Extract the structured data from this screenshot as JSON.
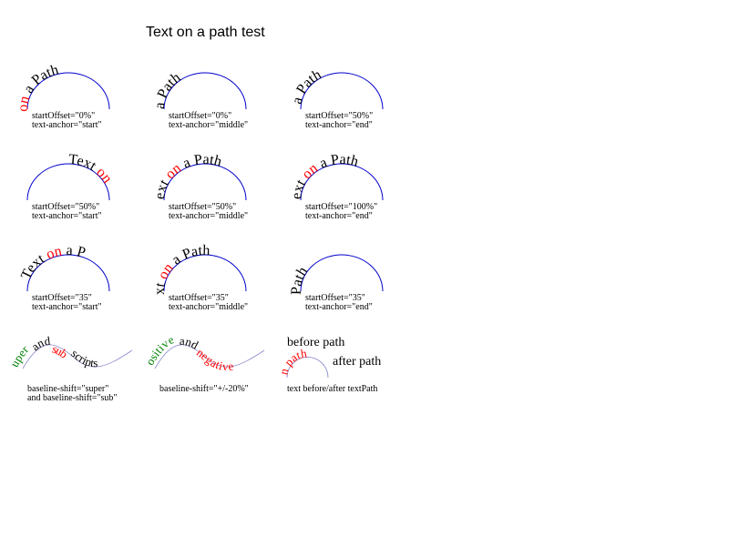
{
  "title": "Text on a path test",
  "colors": {
    "path": "#0000cc",
    "thin_path": "#8888cc",
    "red": "#ff0000",
    "green": "#008000",
    "black": "#000000"
  },
  "path_text": {
    "text": "Text",
    "on": "on",
    "a_path": "a Path"
  },
  "captions": [
    {
      "l1": "startOffset=\"0%\"",
      "l2": "text-anchor=\"start\""
    },
    {
      "l1": "startOffset=\"0%\"",
      "l2": "text-anchor=\"middle\""
    },
    {
      "l1": "startOffset=\"50%\"",
      "l2": "text-anchor=\"end\""
    },
    {
      "l1": "startOffset=\"50%\"",
      "l2": "text-anchor=\"start\""
    },
    {
      "l1": "startOffset=\"50%\"",
      "l2": "text-anchor=\"middle\""
    },
    {
      "l1": "startOffset=\"100%\"",
      "l2": "text-anchor=\"end\""
    },
    {
      "l1": "startOffset=\"35\"",
      "l2": "text-anchor=\"start\""
    },
    {
      "l1": "startOffset=\"35\"",
      "l2": "text-anchor=\"middle\""
    },
    {
      "l1": "startOffset=\"35\"",
      "l2": "text-anchor=\"end\""
    }
  ],
  "shift_demo": {
    "super": "super",
    "and": "and",
    "sub": "sub",
    "scripts": "scripts",
    "caption1": "baseline-shift=\"super\"",
    "caption2": "and baseline-shift=\"sub\"",
    "positive": "positive",
    "negative": "negative",
    "caption3": "baseline-shift=\"+/-20%\""
  },
  "before_after": {
    "before": "before path",
    "on_path": "on path",
    "after": "after path",
    "caption": "text before/after textPath"
  }
}
